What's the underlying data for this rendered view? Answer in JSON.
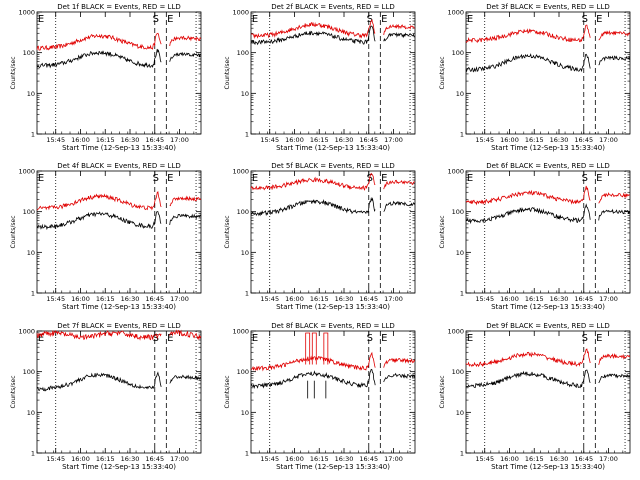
{
  "figure": {
    "panels": [
      {
        "title": "Det 1f BLACK = Events, RED = LLD",
        "red_level": 130,
        "black_level": 48,
        "red_type": "hump",
        "black_hump": 2.1,
        "red_hump": 2.0
      },
      {
        "title": "Det 2f BLACK = Events, RED = LLD",
        "red_level": 260,
        "black_level": 180,
        "red_type": "hump",
        "black_hump": 1.7,
        "red_hump": 1.9
      },
      {
        "title": "Det 3f BLACK = Events, RED = LLD",
        "red_level": 200,
        "black_level": 38,
        "red_type": "hump",
        "black_hump": 2.2,
        "red_hump": 1.7
      },
      {
        "title": "Det 4f BLACK = Events, RED = LLD",
        "red_level": 120,
        "black_level": 42,
        "red_type": "hump",
        "black_hump": 2.1,
        "red_hump": 2.0
      },
      {
        "title": "Det 5f BLACK = Events, RED = LLD",
        "red_level": 380,
        "black_level": 90,
        "red_type": "hump",
        "black_hump": 2.0,
        "red_hump": 1.6
      },
      {
        "title": "Det 6f BLACK = Events, RED = LLD",
        "red_level": 170,
        "black_level": 60,
        "red_type": "hump",
        "black_hump": 1.9,
        "red_hump": 1.7
      },
      {
        "title": "Det 7f BLACK = Events, RED = LLD",
        "red_level": 800,
        "black_level": 38,
        "red_type": "flat",
        "black_hump": 2.2,
        "red_hump": 1.0
      },
      {
        "title": "Det 8f BLACK = Events, RED = LLD",
        "red_level": 120,
        "black_level": 45,
        "red_type": "spiky",
        "black_hump": 2.0,
        "red_hump": 1.8
      },
      {
        "title": "Det 9f BLACK = Events, RED = LLD",
        "red_level": 150,
        "black_level": 45,
        "red_type": "hump",
        "black_hump": 2.0,
        "red_hump": 1.8
      }
    ],
    "ylabel": "Counts/sec",
    "xlabel": "Start Time (12-Sep-13 15:33:40)",
    "xticks": [
      "15:45",
      "16:00",
      "16:15",
      "16:30",
      "16:45",
      "17:00"
    ],
    "yticks": [
      "1",
      "10",
      "100",
      "1000"
    ],
    "markers": {
      "S": "S",
      "E": "E"
    }
  },
  "chart_data": {
    "type": "line",
    "title": "",
    "xlabel": "Start Time (12-Sep-13 15:33:40)",
    "ylabel": "Counts/sec",
    "x_range": [
      "15:33:40",
      "17:13"
    ],
    "ylim": [
      1,
      1000
    ],
    "y_scale": "log",
    "series": [
      {
        "name": "BLACK = Events",
        "color": "#000000"
      },
      {
        "name": "RED = LLD",
        "color": "#e00000"
      }
    ],
    "vertical_lines": [
      {
        "time": "15:45",
        "style": "dotted"
      },
      {
        "time": "16:45",
        "style": "dashed",
        "label": "S"
      },
      {
        "time": "16:52",
        "style": "dashed",
        "label": "E"
      },
      {
        "time": "17:10",
        "style": "dotted"
      }
    ]
  },
  "colors": {
    "events": "#000000",
    "lld": "#e00000"
  }
}
